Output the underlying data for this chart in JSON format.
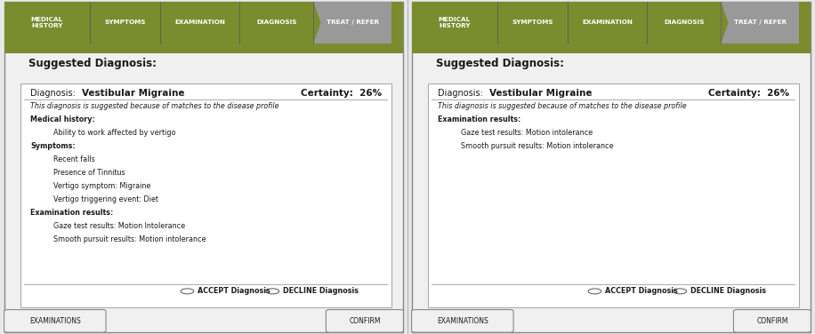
{
  "bg_color": "#e8e8e8",
  "outer_bg": "#f0f0f0",
  "nav_green": "#7a8c2e",
  "nav_gray": "#999999",
  "nav_items": [
    "MEDICAL\nHISTORY",
    "SYMPTOMS",
    "EXAMINATION",
    "DIAGNOSIS",
    "TREAT / REFER"
  ],
  "green_stripe": "#7a8c2e",
  "panel_bg": "#f5f5f5",
  "white": "#ffffff",
  "border_color": "#aaaaaa",
  "dark_border": "#888888",
  "suggested_title": "Suggested Diagnosis:",
  "diagnosis_label": "Diagnosis:",
  "diagnosis_value": "Vestibular Migraine",
  "certainty_label": "Certainty:  26%",
  "suggested_text": "This diagnosis is suggested because of matches to the disease profile",
  "left_content": [
    [
      "bold",
      "Medical history:"
    ],
    [
      "indent",
      "Ability to work affected by vertigo"
    ],
    [
      "bold",
      "Symptoms:"
    ],
    [
      "indent",
      "Recent falls"
    ],
    [
      "indent",
      "Presence of Tinnitus"
    ],
    [
      "indent",
      "Vertigo symptom: Migraine"
    ],
    [
      "indent",
      "Vertigo triggering event: Diet"
    ],
    [
      "bold",
      "Examination results:"
    ],
    [
      "indent",
      "Gaze test results: Motion Intolerance"
    ],
    [
      "indent",
      "Smooth pursuit results: Motion intolerance"
    ]
  ],
  "right_content": [
    [
      "bold",
      "Examination results:"
    ],
    [
      "indent",
      "Gaze test results: Motion intolerance"
    ],
    [
      "indent",
      "Smooth pursuit results: Motion intolerance"
    ]
  ],
  "accept_label": "ACCEPT Diagnosis",
  "decline_label": "DECLINE Diagnosis",
  "exam_btn": "EXAMINATIONS",
  "confirm_btn": "CONFIRM",
  "font_color": "#1a1a1a"
}
